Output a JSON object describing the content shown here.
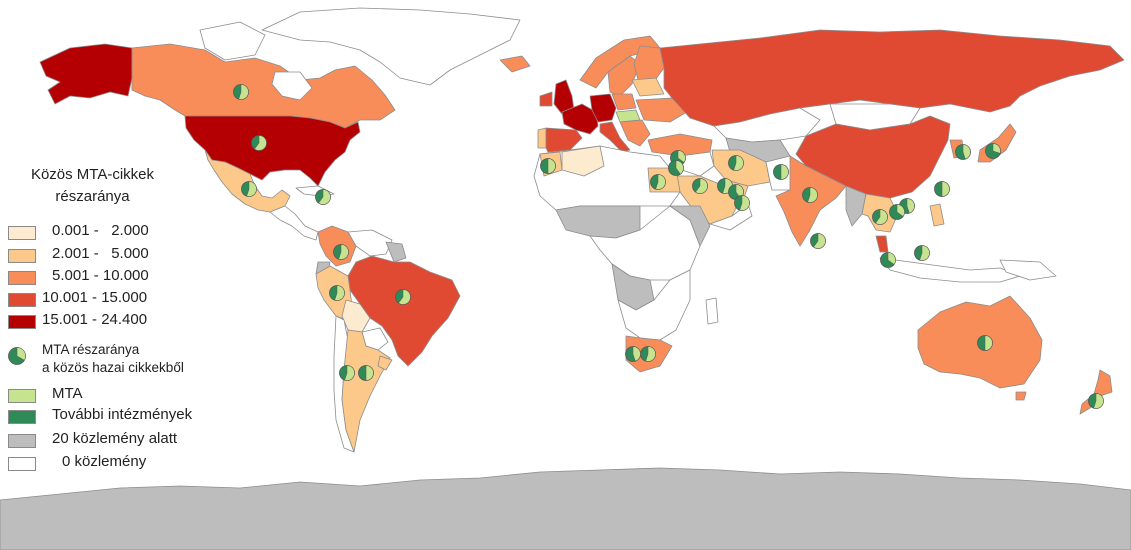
{
  "legend": {
    "title_line1": "Közös MTA-cikkek",
    "title_line2": "részaránya",
    "classes": [
      {
        "label": "0.001 -   2.000",
        "color": "#fdebcf"
      },
      {
        "label": "2.001 -   5.000",
        "color": "#fcc98a"
      },
      {
        "label": "5.001 - 10.000",
        "color": "#f98d5a"
      },
      {
        "label": "10.001 - 15.000",
        "color": "#e04a32"
      },
      {
        "label": "15.001 - 24.400",
        "color": "#b50003"
      }
    ],
    "pie_label_line1": "MTA részaránya",
    "pie_label_line2": "a közös hazai cikkekből",
    "mta_label": "MTA",
    "mta_color": "#c6e48f",
    "other_label": "További intézmények",
    "other_color": "#2e8b57",
    "under20_label": "20 közlemény alatt",
    "under20_color": "#bdbdbd",
    "zero_label": "0 közlemény",
    "zero_color": "#ffffff"
  }
}
